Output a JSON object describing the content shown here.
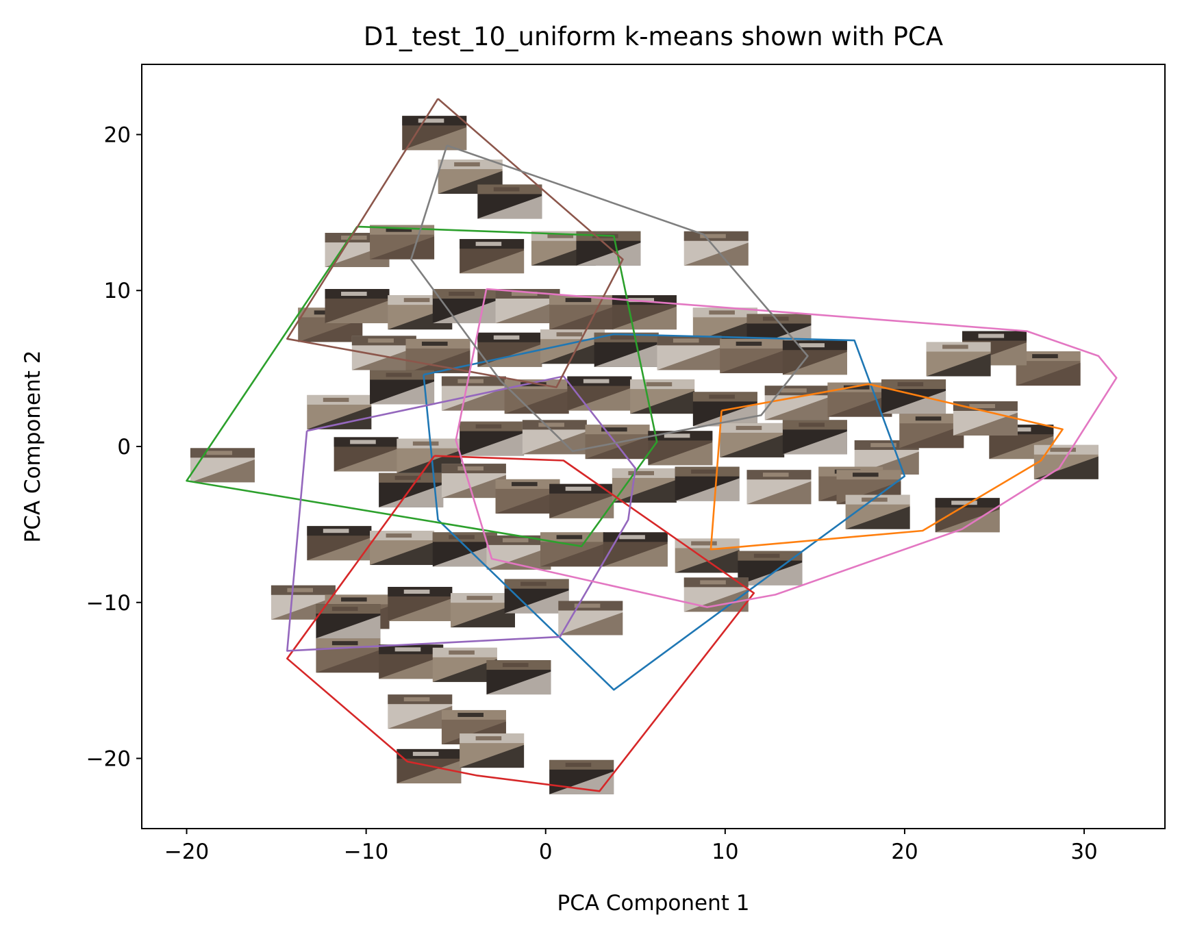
{
  "chart_data": {
    "type": "scatter",
    "title": "D1_test_10_uniform k-means shown with PCA",
    "xlabel": "PCA Component 1",
    "ylabel": "PCA Component 2",
    "xlim": [
      -22.5,
      34.5
    ],
    "ylim": [
      -24.5,
      24.5
    ],
    "xticks": [
      -20,
      -10,
      0,
      10,
      20,
      30
    ],
    "yticks": [
      -20,
      -10,
      0,
      10,
      20
    ],
    "xtick_labels": [
      "−20",
      "−10",
      "0",
      "10",
      "20",
      "30"
    ],
    "ytick_labels": [
      "−20",
      "−10",
      "0",
      "10",
      "20"
    ],
    "grid": false,
    "legend": "none",
    "marker": "image-thumbnails",
    "thumbnail_colors": [
      "#5a4a3e",
      "#9a8a78",
      "#2e2825",
      "#c8c0b8",
      "#7a6858"
    ],
    "points": [
      [
        -6.2,
        20.1
      ],
      [
        -4.2,
        17.3
      ],
      [
        -2.0,
        15.7
      ],
      [
        -10.5,
        12.6
      ],
      [
        -8.0,
        13.1
      ],
      [
        -3.0,
        12.2
      ],
      [
        1.0,
        12.7
      ],
      [
        3.5,
        12.7
      ],
      [
        9.5,
        12.7
      ],
      [
        -12.0,
        7.8
      ],
      [
        -10.5,
        9.0
      ],
      [
        -7.0,
        8.6
      ],
      [
        -4.5,
        9.0
      ],
      [
        -1.0,
        9.0
      ],
      [
        2.0,
        8.6
      ],
      [
        5.5,
        8.6
      ],
      [
        10.0,
        7.8
      ],
      [
        13.0,
        7.4
      ],
      [
        -9.0,
        6.0
      ],
      [
        -6.0,
        5.8
      ],
      [
        -2.0,
        6.2
      ],
      [
        1.5,
        6.4
      ],
      [
        4.5,
        6.2
      ],
      [
        8.0,
        6.0
      ],
      [
        11.5,
        5.8
      ],
      [
        15.0,
        5.7
      ],
      [
        -11.5,
        2.2
      ],
      [
        -8.0,
        3.8
      ],
      [
        -4.0,
        3.4
      ],
      [
        -0.5,
        3.2
      ],
      [
        3.0,
        3.4
      ],
      [
        6.5,
        3.2
      ],
      [
        10.0,
        2.4
      ],
      [
        14.0,
        2.8
      ],
      [
        17.5,
        3.0
      ],
      [
        -10.0,
        -0.5
      ],
      [
        -6.5,
        -0.6
      ],
      [
        -3.0,
        0.5
      ],
      [
        0.5,
        0.6
      ],
      [
        4.0,
        0.3
      ],
      [
        7.5,
        -0.1
      ],
      [
        11.5,
        0.4
      ],
      [
        15.0,
        0.6
      ],
      [
        19.0,
        -0.7
      ],
      [
        21.5,
        1.0
      ],
      [
        26.5,
        0.3
      ],
      [
        29.0,
        -1.0
      ],
      [
        -7.5,
        -2.8
      ],
      [
        -4.0,
        -2.2
      ],
      [
        -1.0,
        -3.2
      ],
      [
        2.0,
        -3.5
      ],
      [
        5.5,
        -2.5
      ],
      [
        9.0,
        -2.4
      ],
      [
        13.0,
        -2.6
      ],
      [
        17.0,
        -2.4
      ],
      [
        -11.5,
        -6.2
      ],
      [
        -8.0,
        -6.5
      ],
      [
        -4.5,
        -6.6
      ],
      [
        -1.5,
        -6.8
      ],
      [
        1.5,
        -6.6
      ],
      [
        5.0,
        -6.6
      ],
      [
        9.0,
        -7.0
      ],
      [
        12.5,
        -7.8
      ],
      [
        -13.5,
        -10.0
      ],
      [
        -10.5,
        -10.6
      ],
      [
        -7.0,
        -10.1
      ],
      [
        -3.5,
        -10.5
      ],
      [
        -0.5,
        -9.6
      ],
      [
        2.5,
        -11.0
      ],
      [
        -11.0,
        -13.4
      ],
      [
        -7.5,
        -13.8
      ],
      [
        -4.5,
        -14.0
      ],
      [
        -1.5,
        -14.8
      ],
      [
        -7.0,
        -17.0
      ],
      [
        -4.0,
        -18.0
      ],
      [
        -6.5,
        -20.5
      ],
      [
        -3.0,
        -19.5
      ],
      [
        2.0,
        -21.2
      ],
      [
        9.5,
        -9.5
      ],
      [
        28.0,
        5.0
      ],
      [
        25.0,
        6.3
      ],
      [
        23.0,
        5.6
      ],
      [
        20.5,
        3.2
      ],
      [
        24.5,
        1.8
      ],
      [
        18.0,
        -2.6
      ],
      [
        23.5,
        -4.4
      ],
      [
        18.5,
        -4.2
      ],
      [
        -11.0,
        -11.2
      ],
      [
        -18.0,
        -1.2
      ]
    ],
    "hulls": [
      {
        "color": "#1f77b4",
        "points": [
          [
            -6.8,
            4.6
          ],
          [
            3.8,
            7.2
          ],
          [
            17.2,
            6.8
          ],
          [
            20.0,
            -1.9
          ],
          [
            3.8,
            -15.6
          ],
          [
            -6.0,
            -4.7
          ],
          [
            -6.8,
            4.6
          ]
        ]
      },
      {
        "color": "#ff7f0e",
        "points": [
          [
            9.8,
            2.3
          ],
          [
            18.0,
            4.0
          ],
          [
            28.8,
            1.1
          ],
          [
            27.6,
            -0.9
          ],
          [
            21.0,
            -5.4
          ],
          [
            9.2,
            -6.6
          ],
          [
            9.8,
            2.3
          ]
        ]
      },
      {
        "color": "#2ca02c",
        "points": [
          [
            -10.5,
            14.1
          ],
          [
            3.8,
            13.5
          ],
          [
            6.2,
            0.3
          ],
          [
            2.0,
            -6.4
          ],
          [
            -20.0,
            -2.2
          ],
          [
            -10.5,
            14.1
          ]
        ]
      },
      {
        "color": "#d62728",
        "points": [
          [
            -6.2,
            -0.6
          ],
          [
            1.0,
            -0.9
          ],
          [
            11.6,
            -9.4
          ],
          [
            3.0,
            -22.1
          ],
          [
            -3.8,
            -21.1
          ],
          [
            -7.7,
            -20.2
          ],
          [
            -14.4,
            -13.6
          ],
          [
            -6.2,
            -0.6
          ]
        ]
      },
      {
        "color": "#9467bd",
        "points": [
          [
            -13.3,
            1.0
          ],
          [
            1.0,
            4.5
          ],
          [
            5.0,
            -1.4
          ],
          [
            4.6,
            -4.7
          ],
          [
            0.8,
            -12.2
          ],
          [
            -14.4,
            -13.1
          ],
          [
            -13.3,
            1.0
          ]
        ]
      },
      {
        "color": "#8c564b",
        "points": [
          [
            -6.0,
            22.3
          ],
          [
            4.3,
            12.0
          ],
          [
            0.6,
            3.8
          ],
          [
            -14.4,
            6.9
          ],
          [
            -6.0,
            22.3
          ]
        ]
      },
      {
        "color": "#e377c2",
        "points": [
          [
            -3.3,
            10.1
          ],
          [
            26.8,
            7.4
          ],
          [
            30.8,
            5.8
          ],
          [
            31.8,
            4.4
          ],
          [
            28.6,
            -1.4
          ],
          [
            23.2,
            -5.3
          ],
          [
            12.8,
            -9.5
          ],
          [
            9.0,
            -10.3
          ],
          [
            -3.0,
            -7.2
          ],
          [
            -5.0,
            0.4
          ],
          [
            -3.3,
            10.1
          ]
        ]
      },
      {
        "color": "#7f7f7f",
        "points": [
          [
            -5.5,
            19.3
          ],
          [
            8.8,
            13.6
          ],
          [
            14.6,
            5.8
          ],
          [
            12.0,
            2.0
          ],
          [
            1.5,
            -0.3
          ],
          [
            -2.5,
            4.2
          ],
          [
            -7.5,
            12.0
          ],
          [
            -5.5,
            19.3
          ]
        ]
      }
    ]
  }
}
